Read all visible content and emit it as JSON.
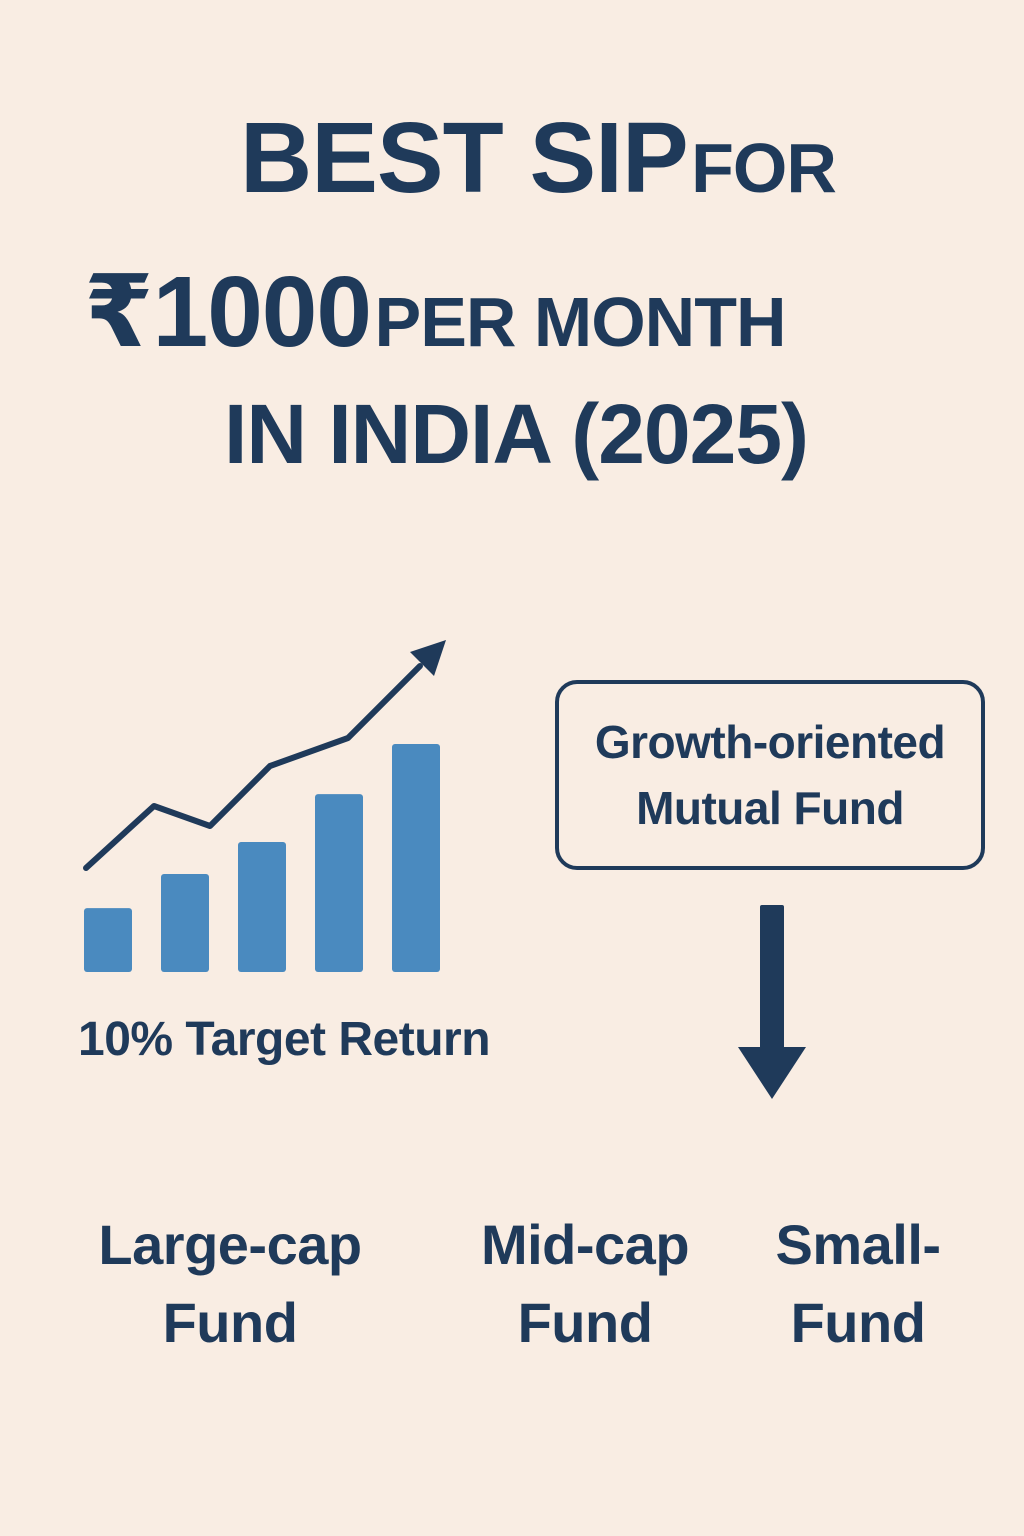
{
  "title": {
    "line1_big": "BEST SIP",
    "line1_small": "FOR",
    "line2_big": "₹1000",
    "line2_small": "PER MONTH",
    "line3": "IN INDIA (2025)"
  },
  "growth_graphic": {
    "label": "10% Target Return",
    "bar_color": "#4a8abf",
    "line_color": "#1f3a5a",
    "relative_bar_levels": [
      0.28,
      0.43,
      0.57,
      0.78,
      1.0
    ],
    "icon": "growth-chart-icon"
  },
  "fund_type_box": {
    "line1": "Growth-oriented",
    "line2": "Mutual Fund"
  },
  "arrow": {
    "icon": "down-arrow-icon"
  },
  "fund_options": [
    {
      "line1": "Large-cap",
      "line2": "Fund"
    },
    {
      "line1": "Mid-cap",
      "line2": "Fund"
    },
    {
      "line1": "Small-",
      "line2": "Fund"
    }
  ],
  "colors": {
    "background": "#f9ede3",
    "text": "#1f3a5a",
    "bars": "#4a8abf"
  }
}
